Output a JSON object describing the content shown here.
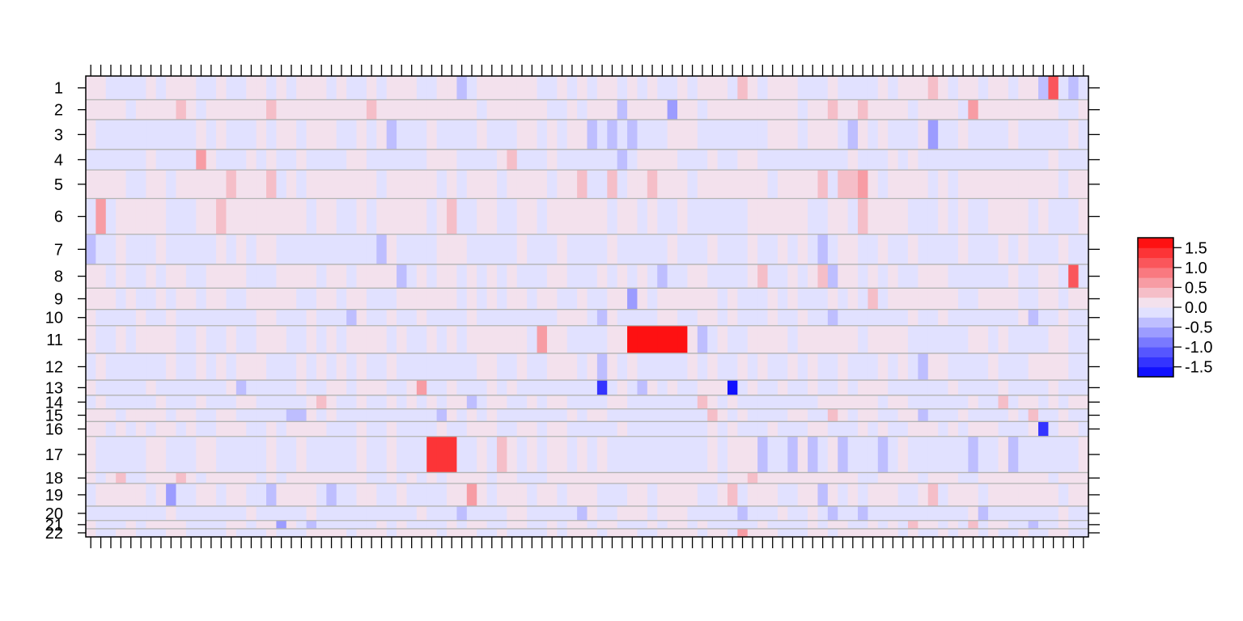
{
  "chart_data": {
    "type": "heatmap",
    "title": "",
    "xlabel": "",
    "ylabel": "",
    "n_columns": 100,
    "rows": [
      "1",
      "2",
      "3",
      "4",
      "5",
      "6",
      "7",
      "8",
      "9",
      "10",
      "11",
      "12",
      "13",
      "14",
      "15",
      "16",
      "17",
      "18",
      "19",
      "20",
      "21",
      "22"
    ],
    "row_extents": [
      [
        0,
        1.96
      ],
      [
        1.96,
        3.6
      ],
      [
        3.6,
        6.06
      ],
      [
        6.06,
        7.75
      ],
      [
        7.75,
        10.11
      ],
      [
        10.11,
        13.06
      ],
      [
        13.06,
        15.54
      ],
      [
        15.54,
        17.5
      ],
      [
        17.5,
        19.26
      ],
      [
        19.26,
        20.6
      ],
      [
        20.6,
        22.88
      ],
      [
        22.88,
        25.09
      ],
      [
        25.09,
        26.34
      ],
      [
        26.34,
        27.47
      ],
      [
        27.47,
        28.51
      ],
      [
        28.51,
        29.74
      ],
      [
        29.74,
        32.72
      ],
      [
        32.72,
        33.62
      ],
      [
        33.62,
        35.49
      ],
      [
        35.49,
        36.68
      ],
      [
        36.68,
        37.36
      ],
      [
        37.36,
        38.03
      ]
    ],
    "value_range": [
      -1.75,
      1.75
    ],
    "colorbar": {
      "ticks": [
        "1.5",
        "1.0",
        "0.5",
        "0.0",
        "-0.5",
        "-1.0",
        "-1.5"
      ],
      "tick_values": [
        1.5,
        1.0,
        0.5,
        0.0,
        -0.5,
        -1.0,
        -1.5
      ],
      "n_levels": 14,
      "low_color": "#0000FF",
      "mid_color": "#F2F2FF",
      "high_color": "#FF0000"
    },
    "grid": "horizontal lines at row boundaries",
    "notable_cells": [
      {
        "row": "11",
        "columns": [
          54,
          55,
          56,
          57,
          58,
          59
        ],
        "value": 1.6
      },
      {
        "row": "13",
        "columns": [
          64
        ],
        "value": -1.7
      },
      {
        "row": "13",
        "columns": [
          51
        ],
        "value": -1.3
      },
      {
        "row": "17",
        "columns": [
          34,
          35,
          36
        ],
        "value": 1.4
      },
      {
        "row": "8",
        "columns": [
          98
        ],
        "value": 1.0
      },
      {
        "row": "1",
        "columns": [
          96
        ],
        "value": 1.2
      },
      {
        "row": "16",
        "columns": [
          95
        ],
        "value": -1.4
      }
    ]
  }
}
